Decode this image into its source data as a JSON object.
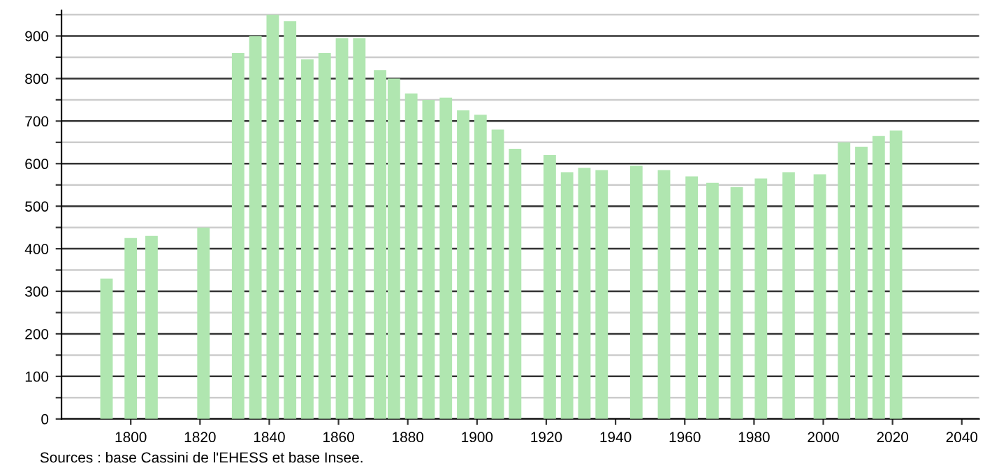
{
  "chart_data": {
    "type": "bar",
    "x": [
      1793,
      1800,
      1806,
      1821,
      1831,
      1836,
      1841,
      1846,
      1851,
      1856,
      1861,
      1866,
      1872,
      1876,
      1881,
      1886,
      1891,
      1896,
      1901,
      1906,
      1911,
      1921,
      1926,
      1931,
      1936,
      1946,
      1954,
      1962,
      1968,
      1975,
      1982,
      1990,
      1999,
      2006,
      2011,
      2016,
      2021
    ],
    "values": [
      330,
      425,
      430,
      450,
      860,
      900,
      950,
      935,
      845,
      860,
      895,
      895,
      820,
      800,
      765,
      750,
      755,
      725,
      715,
      680,
      635,
      620,
      580,
      590,
      585,
      595,
      585,
      570,
      555,
      545,
      565,
      580,
      575,
      650,
      640,
      665,
      678
    ],
    "color": "#b0e6b0",
    "xlim": [
      1780,
      2045
    ],
    "xticks": [
      1800,
      1820,
      1840,
      1860,
      1880,
      1900,
      1920,
      1940,
      1960,
      1980,
      2000,
      2020,
      2040
    ],
    "ylim": [
      0,
      960
    ],
    "yticks": [
      0,
      {
        "value": 50,
        "label": null
      },
      100,
      {
        "value": 150,
        "label": null
      },
      200,
      {
        "value": 250,
        "label": null
      },
      300,
      {
        "value": 350,
        "label": null
      },
      400,
      {
        "value": 450,
        "label": null
      },
      500,
      {
        "value": 550,
        "label": null
      },
      600,
      {
        "value": 650,
        "label": null
      },
      700,
      {
        "value": 750,
        "label": null
      },
      800,
      {
        "value": 850,
        "label": null
      },
      900,
      {
        "value": 950,
        "label": null
      }
    ],
    "grid": "y",
    "annotations": [
      "Sources : base Cassini de l'EHESS et base Insee."
    ]
  }
}
